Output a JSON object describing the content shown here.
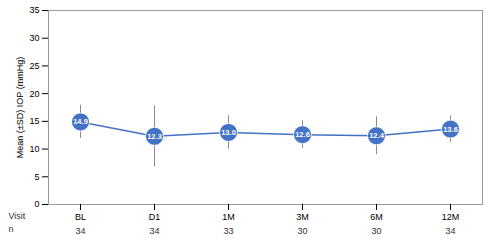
{
  "chart_data": {
    "type": "line",
    "ylabel": "Mean (±SD) IOP (mmHg)",
    "xlabel": "Visit",
    "categories": [
      "BL",
      "D1",
      "1M",
      "3M",
      "6M",
      "12M"
    ],
    "values": [
      14.9,
      12.3,
      13.0,
      12.6,
      12.4,
      13.6
    ],
    "value_labels": [
      "14.9",
      "12.3",
      "13.0",
      "12.6",
      "12.4",
      "13.6"
    ],
    "sd": [
      3.0,
      5.5,
      3.0,
      2.5,
      3.4,
      2.4
    ],
    "counts_label": "n",
    "counts": [
      34,
      34,
      33,
      30,
      30,
      34
    ],
    "color": "#4472c4",
    "marker": "circle",
    "data_labels": true,
    "grid": false,
    "ylim": [
      0,
      35
    ],
    "yticks": [
      0,
      5,
      10,
      15,
      20,
      25,
      30,
      35
    ]
  }
}
